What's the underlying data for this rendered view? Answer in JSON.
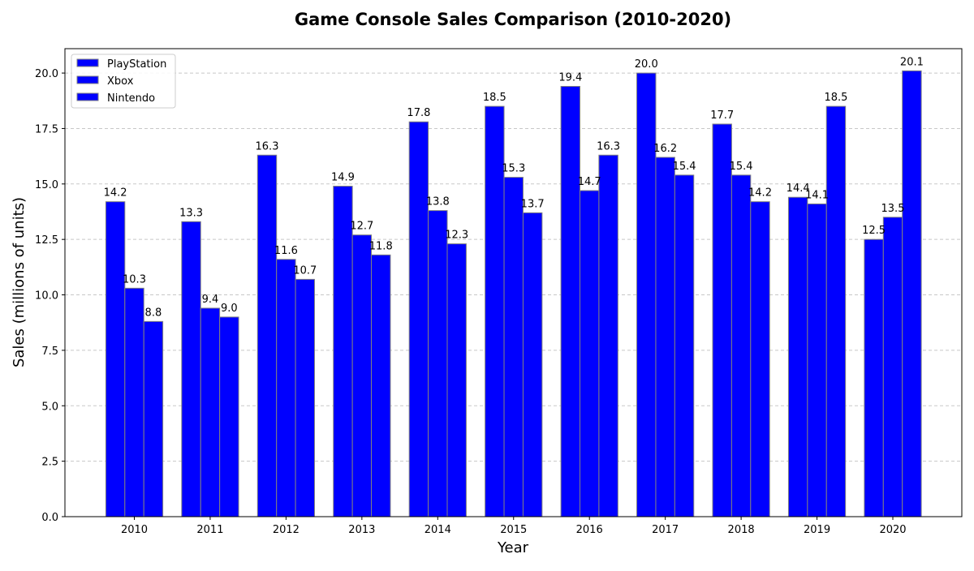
{
  "chart_data": {
    "type": "bar",
    "title": "Game Console Sales Comparison (2010-2020)",
    "xlabel": "Year",
    "ylabel": "Sales (millions of units)",
    "categories": [
      "2010",
      "2011",
      "2012",
      "2013",
      "2014",
      "2015",
      "2016",
      "2017",
      "2018",
      "2019",
      "2020"
    ],
    "series": [
      {
        "name": "PlayStation",
        "values": [
          14.2,
          13.3,
          16.3,
          14.9,
          17.8,
          18.5,
          19.4,
          20.0,
          17.7,
          14.4,
          12.5
        ]
      },
      {
        "name": "Xbox",
        "values": [
          10.3,
          9.4,
          11.6,
          12.7,
          13.8,
          15.3,
          14.7,
          16.2,
          15.4,
          14.1,
          13.5
        ]
      },
      {
        "name": "Nintendo",
        "values": [
          8.8,
          9.0,
          10.7,
          11.8,
          12.3,
          13.7,
          16.3,
          15.4,
          14.2,
          18.5,
          20.1
        ]
      }
    ],
    "ylim": [
      0,
      21.1
    ],
    "yticks": [
      "0.0",
      "2.5",
      "5.0",
      "7.5",
      "10.0",
      "12.5",
      "15.0",
      "17.5",
      "20.0"
    ],
    "grid": "y-dashed",
    "legend_position": "top-left",
    "colors": {
      "bar_fill": "#0000ff",
      "bar_edge": "#808080",
      "grid": "#c8c8c8"
    }
  }
}
